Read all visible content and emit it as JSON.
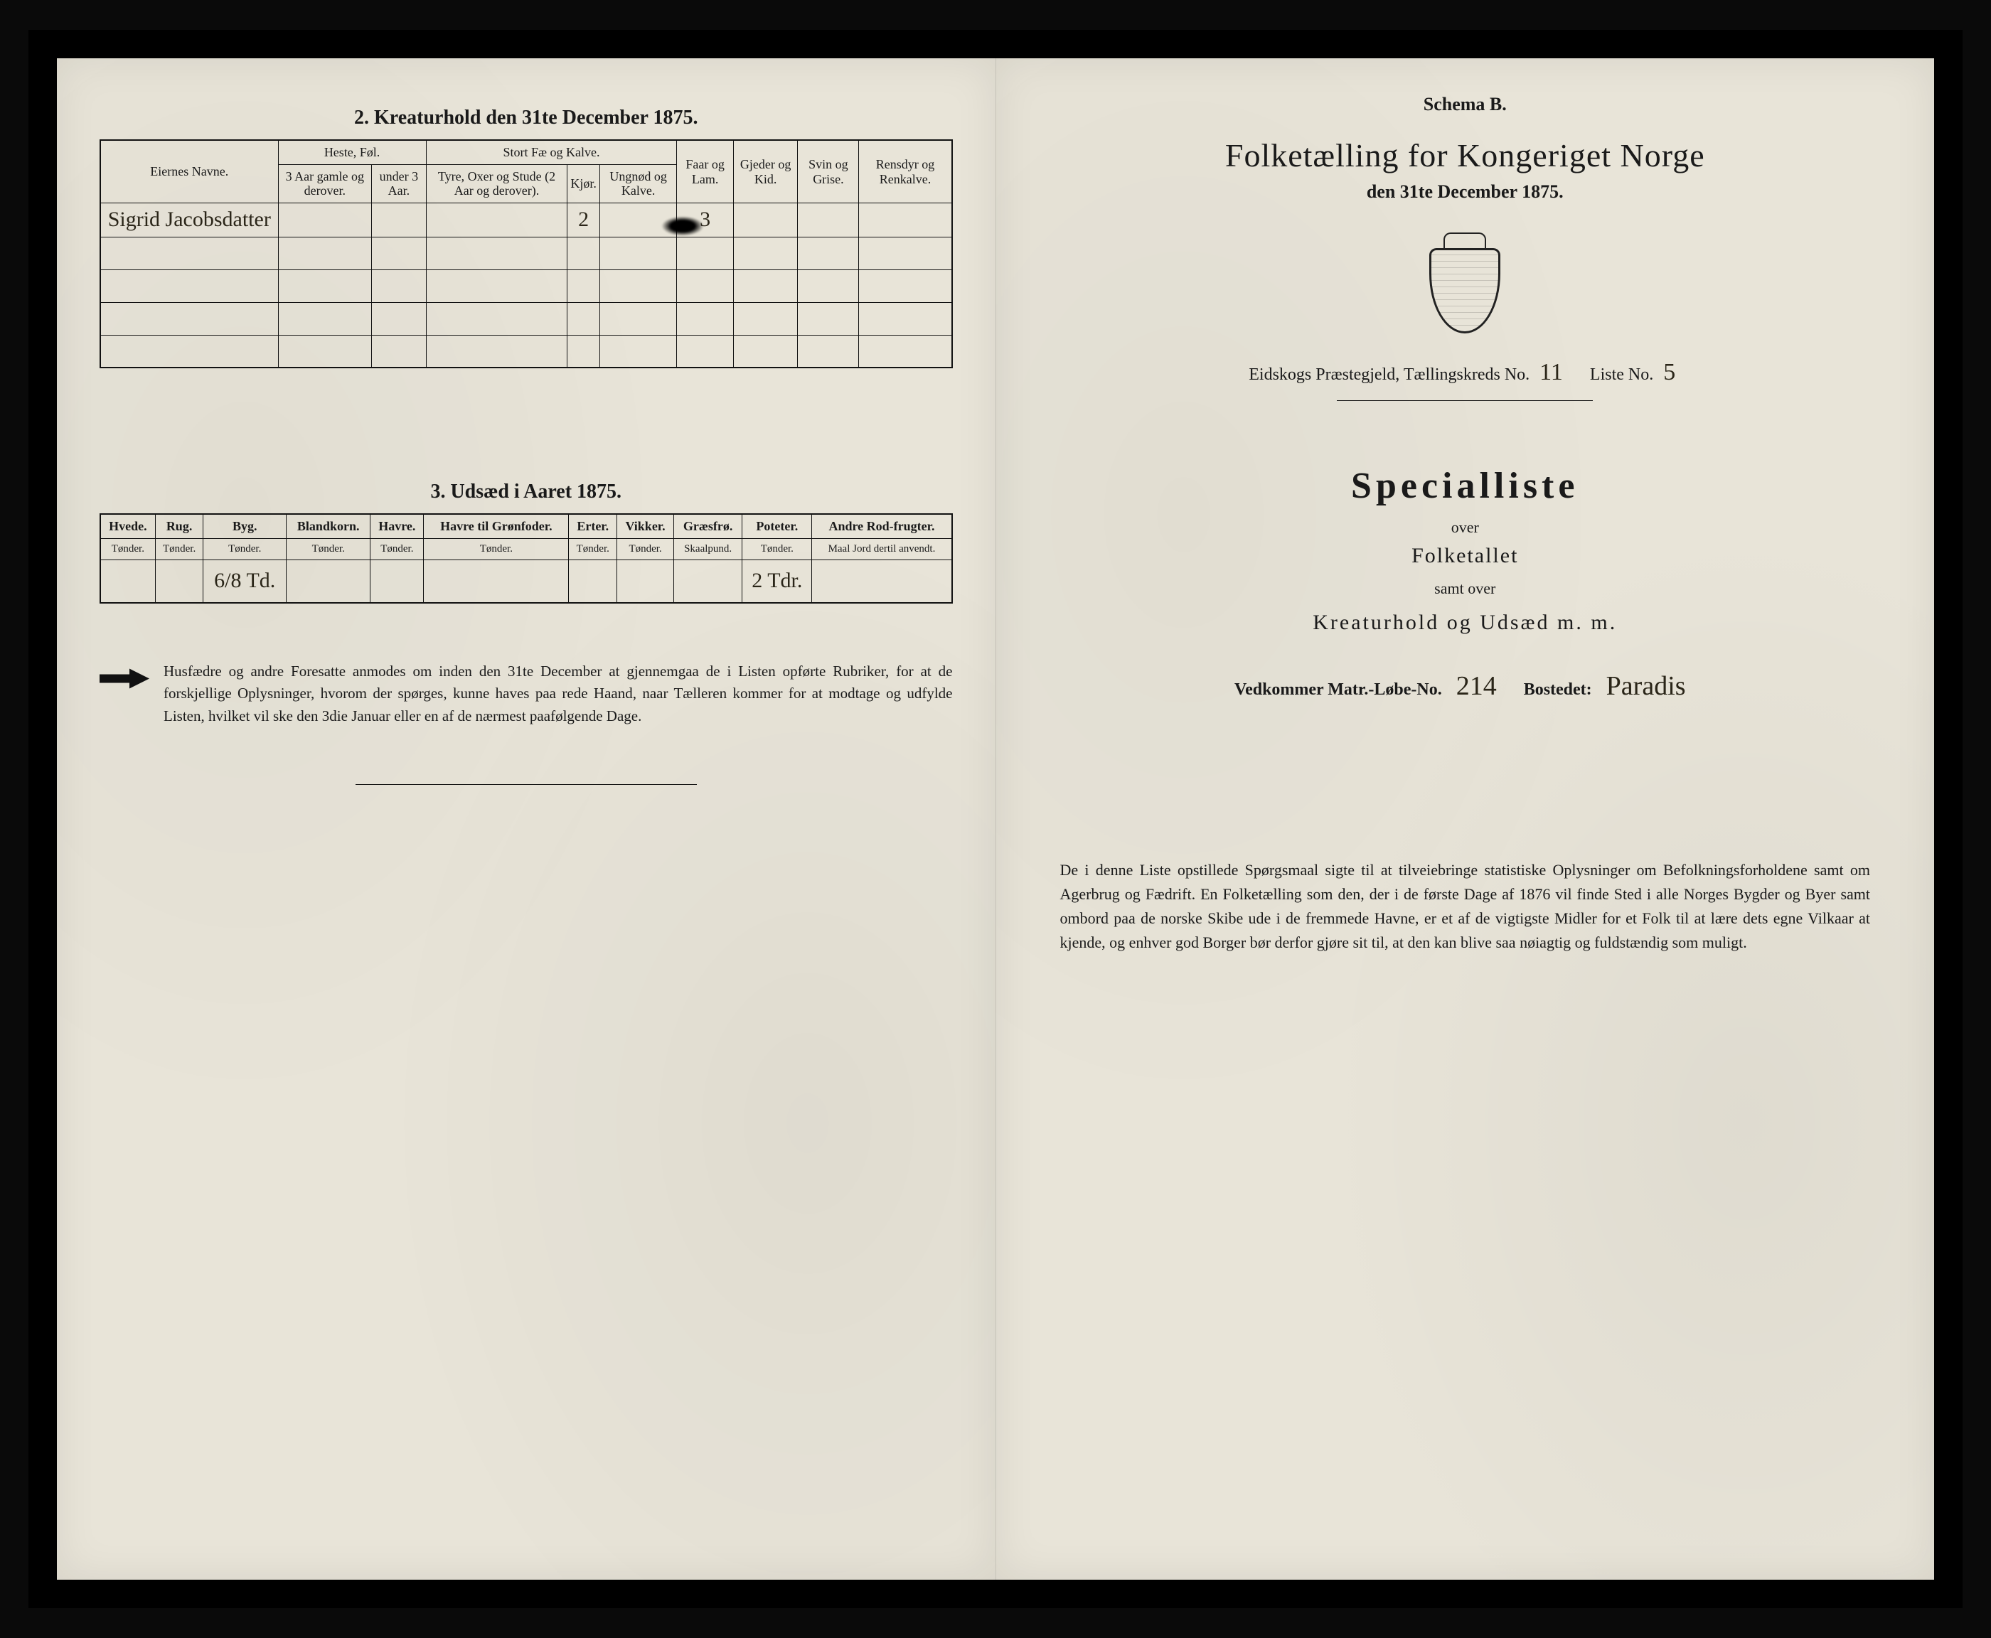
{
  "left": {
    "section2_title": "2.  Kreaturhold den 31te December 1875.",
    "table2": {
      "owner_header": "Eiernes Navne.",
      "groups": {
        "heste": "Heste, Føl.",
        "stort": "Stort Fæ og Kalve.",
        "faar": "Faar og Lam.",
        "gjeder": "Gjeder og Kid.",
        "svin": "Svin og Grise.",
        "rensdyr": "Rensdyr og Renkalve."
      },
      "sub": {
        "heste_a": "3 Aar gamle og derover.",
        "heste_b": "under 3 Aar.",
        "stort_a": "Tyre, Oxer og Stude (2 Aar og derover).",
        "stort_b": "Kjør.",
        "stort_c": "Ungnød og Kalve."
      },
      "rows": [
        {
          "owner": "Sigrid Jacobsdatter",
          "heste_a": "",
          "heste_b": "",
          "stort_a": "",
          "stort_b": "2",
          "stort_c": "",
          "faar": "3",
          "gjeder": "",
          "svin": "",
          "rensdyr": ""
        },
        {
          "owner": "",
          "heste_a": "",
          "heste_b": "",
          "stort_a": "",
          "stort_b": "",
          "stort_c": "",
          "faar": "",
          "gjeder": "",
          "svin": "",
          "rensdyr": ""
        },
        {
          "owner": "",
          "heste_a": "",
          "heste_b": "",
          "stort_a": "",
          "stort_b": "",
          "stort_c": "",
          "faar": "",
          "gjeder": "",
          "svin": "",
          "rensdyr": ""
        },
        {
          "owner": "",
          "heste_a": "",
          "heste_b": "",
          "stort_a": "",
          "stort_b": "",
          "stort_c": "",
          "faar": "",
          "gjeder": "",
          "svin": "",
          "rensdyr": ""
        },
        {
          "owner": "",
          "heste_a": "",
          "heste_b": "",
          "stort_a": "",
          "stort_b": "",
          "stort_c": "",
          "faar": "",
          "gjeder": "",
          "svin": "",
          "rensdyr": ""
        }
      ]
    },
    "section3_title": "3.  Udsæd i Aaret 1875.",
    "table3": {
      "headers": [
        "Hvede.",
        "Rug.",
        "Byg.",
        "Blandkorn.",
        "Havre.",
        "Havre til Grønfoder.",
        "Erter.",
        "Vikker.",
        "Græsfrø.",
        "Poteter.",
        "Andre Rod-frugter."
      ],
      "units": [
        "Tønder.",
        "Tønder.",
        "Tønder.",
        "Tønder.",
        "Tønder.",
        "Tønder.",
        "Tønder.",
        "Tønder.",
        "Skaalpund.",
        "Tønder.",
        "Maal Jord dertil anvendt."
      ],
      "row": [
        "",
        "",
        "6/8 Td.",
        "",
        "",
        "",
        "",
        "",
        "",
        "2 Tdr.",
        ""
      ]
    },
    "instruction": "Husfædre og andre Foresatte anmodes om inden den 31te December at gjennemgaa de i Listen opførte Rubriker, for at de forskjellige Oplysninger, hvorom der spørges, kunne haves paa rede Haand, naar Tælleren kommer for at modtage og udfylde Listen, hvilket vil ske den 3die Januar eller en af de nærmest paafølgende Dage."
  },
  "right": {
    "schema": "Schema B.",
    "main_title": "Folketælling for Kongeriget Norge",
    "subtitle": "den 31te December 1875.",
    "district_line_a": "Eidskogs Præstegjeld,  Tællingskreds No.",
    "district_no": "11",
    "liste_label": "Liste No.",
    "liste_no": "5",
    "big_heading": "Specialliste",
    "over": "over",
    "folketallet": "Folketallet",
    "samt_over": "samt over",
    "kreatur_line": "Kreaturhold og Udsæd m. m.",
    "vedkommer": "Vedkommer Matr.-Løbe-No.",
    "matr_no": "214",
    "bostedet_label": "Bostedet:",
    "bostedet_value": "Paradis",
    "paragraph": "De i denne Liste opstillede Spørgsmaal sigte til at tilveiebringe statistiske Oplysninger om Befolkningsforholdene samt om Agerbrug og Fædrift.  En Folketælling som den, der i de første Dage af 1876 vil finde Sted i alle Norges Bygder og Byer samt ombord paa de norske Skibe ude i de fremmede Havne, er et af de vigtigste Midler for et Folk til at lære dets egne Vilkaar at kjende, og enhver god Borger bør derfor gjøre sit til, at den kan blive saa nøiagtig og fuldstændig som muligt."
  }
}
